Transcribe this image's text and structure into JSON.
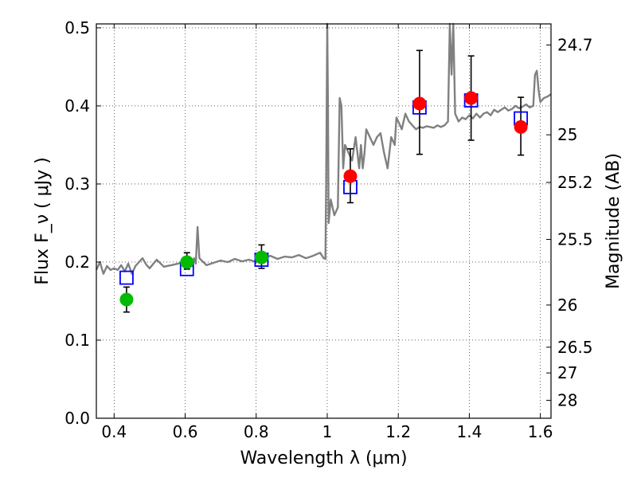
{
  "chart_data": {
    "type": "scatter",
    "xlabel": "Wavelength  λ (μm)",
    "ylabel": "Flux  F_ν  ( μJy )",
    "y2label": "Magnitude (AB)",
    "xlim": [
      0.35,
      1.63
    ],
    "ylim": [
      0.0,
      0.505
    ],
    "grid": true,
    "x_ticks": [
      0.4,
      0.6,
      0.8,
      1.0,
      1.2,
      1.4,
      1.6
    ],
    "x_tick_labels": [
      "0.4",
      "0.6",
      "0.8",
      "1",
      "1.2",
      "1.4",
      "1.6"
    ],
    "y_ticks": [
      0.0,
      0.1,
      0.2,
      0.3,
      0.4,
      0.5
    ],
    "y_tick_labels": [
      "0.0",
      "0.1",
      "0.2",
      "0.3",
      "0.4",
      "0.5"
    ],
    "right_ticks": [
      {
        "label": "24.7",
        "flux": 0.478
      },
      {
        "label": "25",
        "flux": 0.363
      },
      {
        "label": "25.2",
        "flux": 0.302
      },
      {
        "label": "25.5",
        "flux": 0.229
      },
      {
        "label": "26",
        "flux": 0.145
      },
      {
        "label": "26.5",
        "flux": 0.091
      },
      {
        "label": "27",
        "flux": 0.058
      },
      {
        "label": "28",
        "flux": 0.023
      }
    ],
    "spectrum": {
      "color": "#808080",
      "x": [
        0.35,
        0.36,
        0.37,
        0.38,
        0.39,
        0.4,
        0.41,
        0.42,
        0.43,
        0.44,
        0.45,
        0.46,
        0.47,
        0.48,
        0.49,
        0.5,
        0.52,
        0.54,
        0.56,
        0.58,
        0.6,
        0.62,
        0.625,
        0.63,
        0.635,
        0.64,
        0.66,
        0.68,
        0.7,
        0.72,
        0.74,
        0.76,
        0.78,
        0.8,
        0.82,
        0.84,
        0.86,
        0.88,
        0.9,
        0.92,
        0.94,
        0.96,
        0.98,
        0.99,
        0.995,
        0.997,
        1.0,
        1.002,
        1.004,
        1.006,
        1.01,
        1.02,
        1.03,
        1.035,
        1.04,
        1.045,
        1.05,
        1.06,
        1.07,
        1.08,
        1.09,
        1.095,
        1.1,
        1.105,
        1.11,
        1.12,
        1.13,
        1.14,
        1.15,
        1.16,
        1.17,
        1.18,
        1.19,
        1.195,
        1.2,
        1.21,
        1.22,
        1.23,
        1.24,
        1.25,
        1.26,
        1.27,
        1.28,
        1.29,
        1.3,
        1.31,
        1.32,
        1.33,
        1.34,
        1.345,
        1.35,
        1.355,
        1.36,
        1.37,
        1.38,
        1.39,
        1.4,
        1.41,
        1.42,
        1.43,
        1.44,
        1.45,
        1.46,
        1.47,
        1.48,
        1.49,
        1.5,
        1.51,
        1.52,
        1.53,
        1.54,
        1.55,
        1.56,
        1.57,
        1.58,
        1.585,
        1.59,
        1.595,
        1.6,
        1.61,
        1.62,
        1.63
      ],
      "y": [
        0.19,
        0.2,
        0.185,
        0.195,
        0.19,
        0.192,
        0.19,
        0.196,
        0.188,
        0.198,
        0.185,
        0.195,
        0.2,
        0.205,
        0.197,
        0.192,
        0.203,
        0.194,
        0.196,
        0.198,
        0.201,
        0.195,
        0.205,
        0.198,
        0.245,
        0.205,
        0.196,
        0.199,
        0.202,
        0.2,
        0.204,
        0.201,
        0.203,
        0.2,
        0.205,
        0.208,
        0.204,
        0.207,
        0.206,
        0.209,
        0.205,
        0.208,
        0.212,
        0.205,
        0.204,
        0.3,
        0.51,
        0.4,
        0.25,
        0.26,
        0.28,
        0.26,
        0.27,
        0.41,
        0.4,
        0.32,
        0.35,
        0.34,
        0.33,
        0.36,
        0.32,
        0.35,
        0.32,
        0.34,
        0.37,
        0.36,
        0.35,
        0.36,
        0.365,
        0.34,
        0.32,
        0.36,
        0.35,
        0.385,
        0.38,
        0.37,
        0.39,
        0.38,
        0.375,
        0.37,
        0.373,
        0.372,
        0.374,
        0.373,
        0.372,
        0.375,
        0.373,
        0.375,
        0.38,
        0.51,
        0.44,
        0.52,
        0.39,
        0.38,
        0.385,
        0.383,
        0.388,
        0.384,
        0.39,
        0.385,
        0.39,
        0.392,
        0.388,
        0.395,
        0.392,
        0.395,
        0.398,
        0.394,
        0.396,
        0.4,
        0.397,
        0.399,
        0.402,
        0.398,
        0.4,
        0.44,
        0.445,
        0.42,
        0.405,
        0.41,
        0.412,
        0.415
      ]
    },
    "model_points": {
      "color": "#0000ff",
      "x": [
        0.435,
        0.605,
        0.815,
        1.065,
        1.26,
        1.405,
        1.545
      ],
      "y": [
        0.18,
        0.191,
        0.203,
        0.296,
        0.398,
        0.407,
        0.384
      ]
    },
    "observed_points": {
      "colors": [
        "#00bb00",
        "#00bb00",
        "#00bb00",
        "#ff0000",
        "#ff0000",
        "#ff0000",
        "#ff0000"
      ],
      "x": [
        0.435,
        0.605,
        0.815,
        1.065,
        1.26,
        1.405,
        1.545
      ],
      "y": [
        0.152,
        0.2,
        0.206,
        0.31,
        0.403,
        0.41,
        0.373
      ],
      "err_low": [
        0.016,
        0.009,
        0.014,
        0.034,
        0.065,
        0.054,
        0.036
      ],
      "err_high": [
        0.016,
        0.012,
        0.016,
        0.035,
        0.068,
        0.054,
        0.038
      ]
    }
  }
}
